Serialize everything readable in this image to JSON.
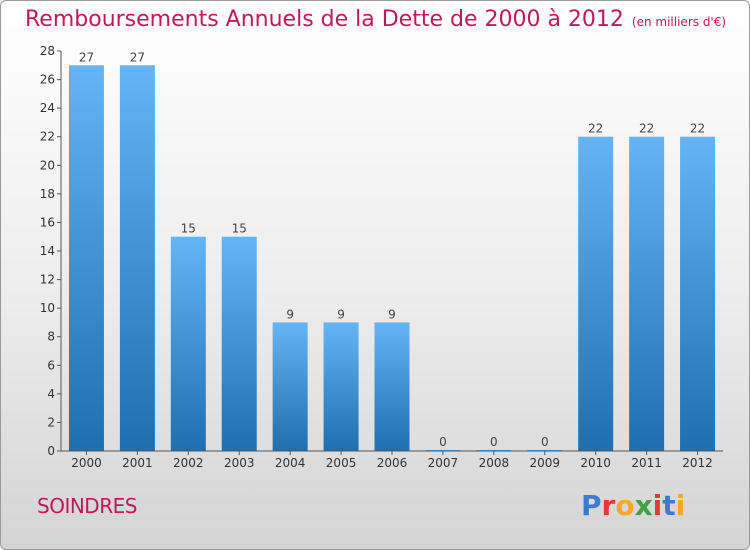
{
  "title": "Remboursements Annuels de la Dette de 2000 à 2012",
  "subtitle": "(en milliers d'€)",
  "commune": "SOINDRES",
  "logo": {
    "text": "Proxiti",
    "letter_colors": [
      "#3a7bd5",
      "#e53935",
      "#f9a825",
      "#43a047",
      "#e53935",
      "#3a7bd5",
      "#f9a825"
    ]
  },
  "colors": {
    "title": "#c2185b",
    "bar_top": "#64b5f6",
    "bar_bottom": "#1e6fb0",
    "axis": "#555555"
  },
  "chart_data": {
    "type": "bar",
    "categories": [
      "2000",
      "2001",
      "2002",
      "2003",
      "2004",
      "2005",
      "2006",
      "2007",
      "2008",
      "2009",
      "2010",
      "2011",
      "2012"
    ],
    "values": [
      27,
      27,
      15,
      15,
      9,
      9,
      9,
      0,
      0,
      0,
      22,
      22,
      22
    ],
    "ylim": [
      0,
      28
    ],
    "yticks": [
      0,
      2,
      4,
      6,
      8,
      10,
      12,
      14,
      16,
      18,
      20,
      22,
      24,
      26,
      28
    ],
    "grid": false,
    "data_labels": true
  }
}
